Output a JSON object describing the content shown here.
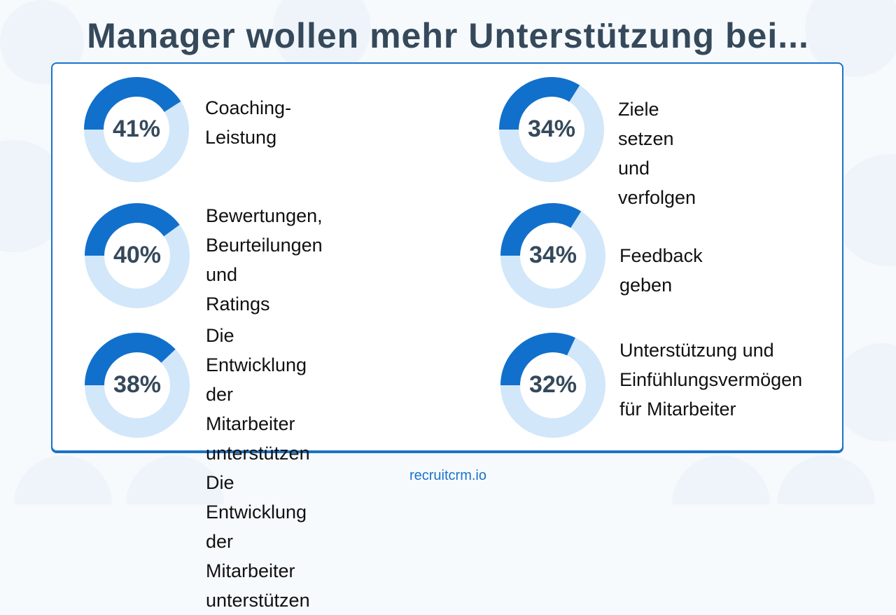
{
  "title": "Manager wollen mehr Unterstützung bei...",
  "footer": "recruitcrm.io",
  "colors": {
    "filled": "#1170cc",
    "remaining": "#d2e7f9",
    "title": "#35495b",
    "border": "#1a73c9"
  },
  "chart_data": {
    "type": "pie",
    "variant": "donut",
    "title": "Manager wollen mehr Unterstützung bei...",
    "items": [
      {
        "value": 41,
        "pct_label": "41%",
        "label": "Coaching-\nLeistung"
      },
      {
        "value": 34,
        "pct_label": "34%",
        "label": "Ziele setzen\nund verfolgen"
      },
      {
        "value": 40,
        "pct_label": "40%",
        "label": "Bewertungen,\nBeurteilungen und\nRatings"
      },
      {
        "value": 34,
        "pct_label": "34%",
        "label": "Feedback geben"
      },
      {
        "value": 38,
        "pct_label": "38%",
        "label": "Die Entwicklung der\nMitarbeiter unterstützen\nDie Entwicklung der\nMitarbeiter unterstützen"
      },
      {
        "value": 32,
        "pct_label": "32%",
        "label": "Unterstützung und\nEinfühlungsvermögen\nfür Mitarbeiter"
      }
    ]
  }
}
